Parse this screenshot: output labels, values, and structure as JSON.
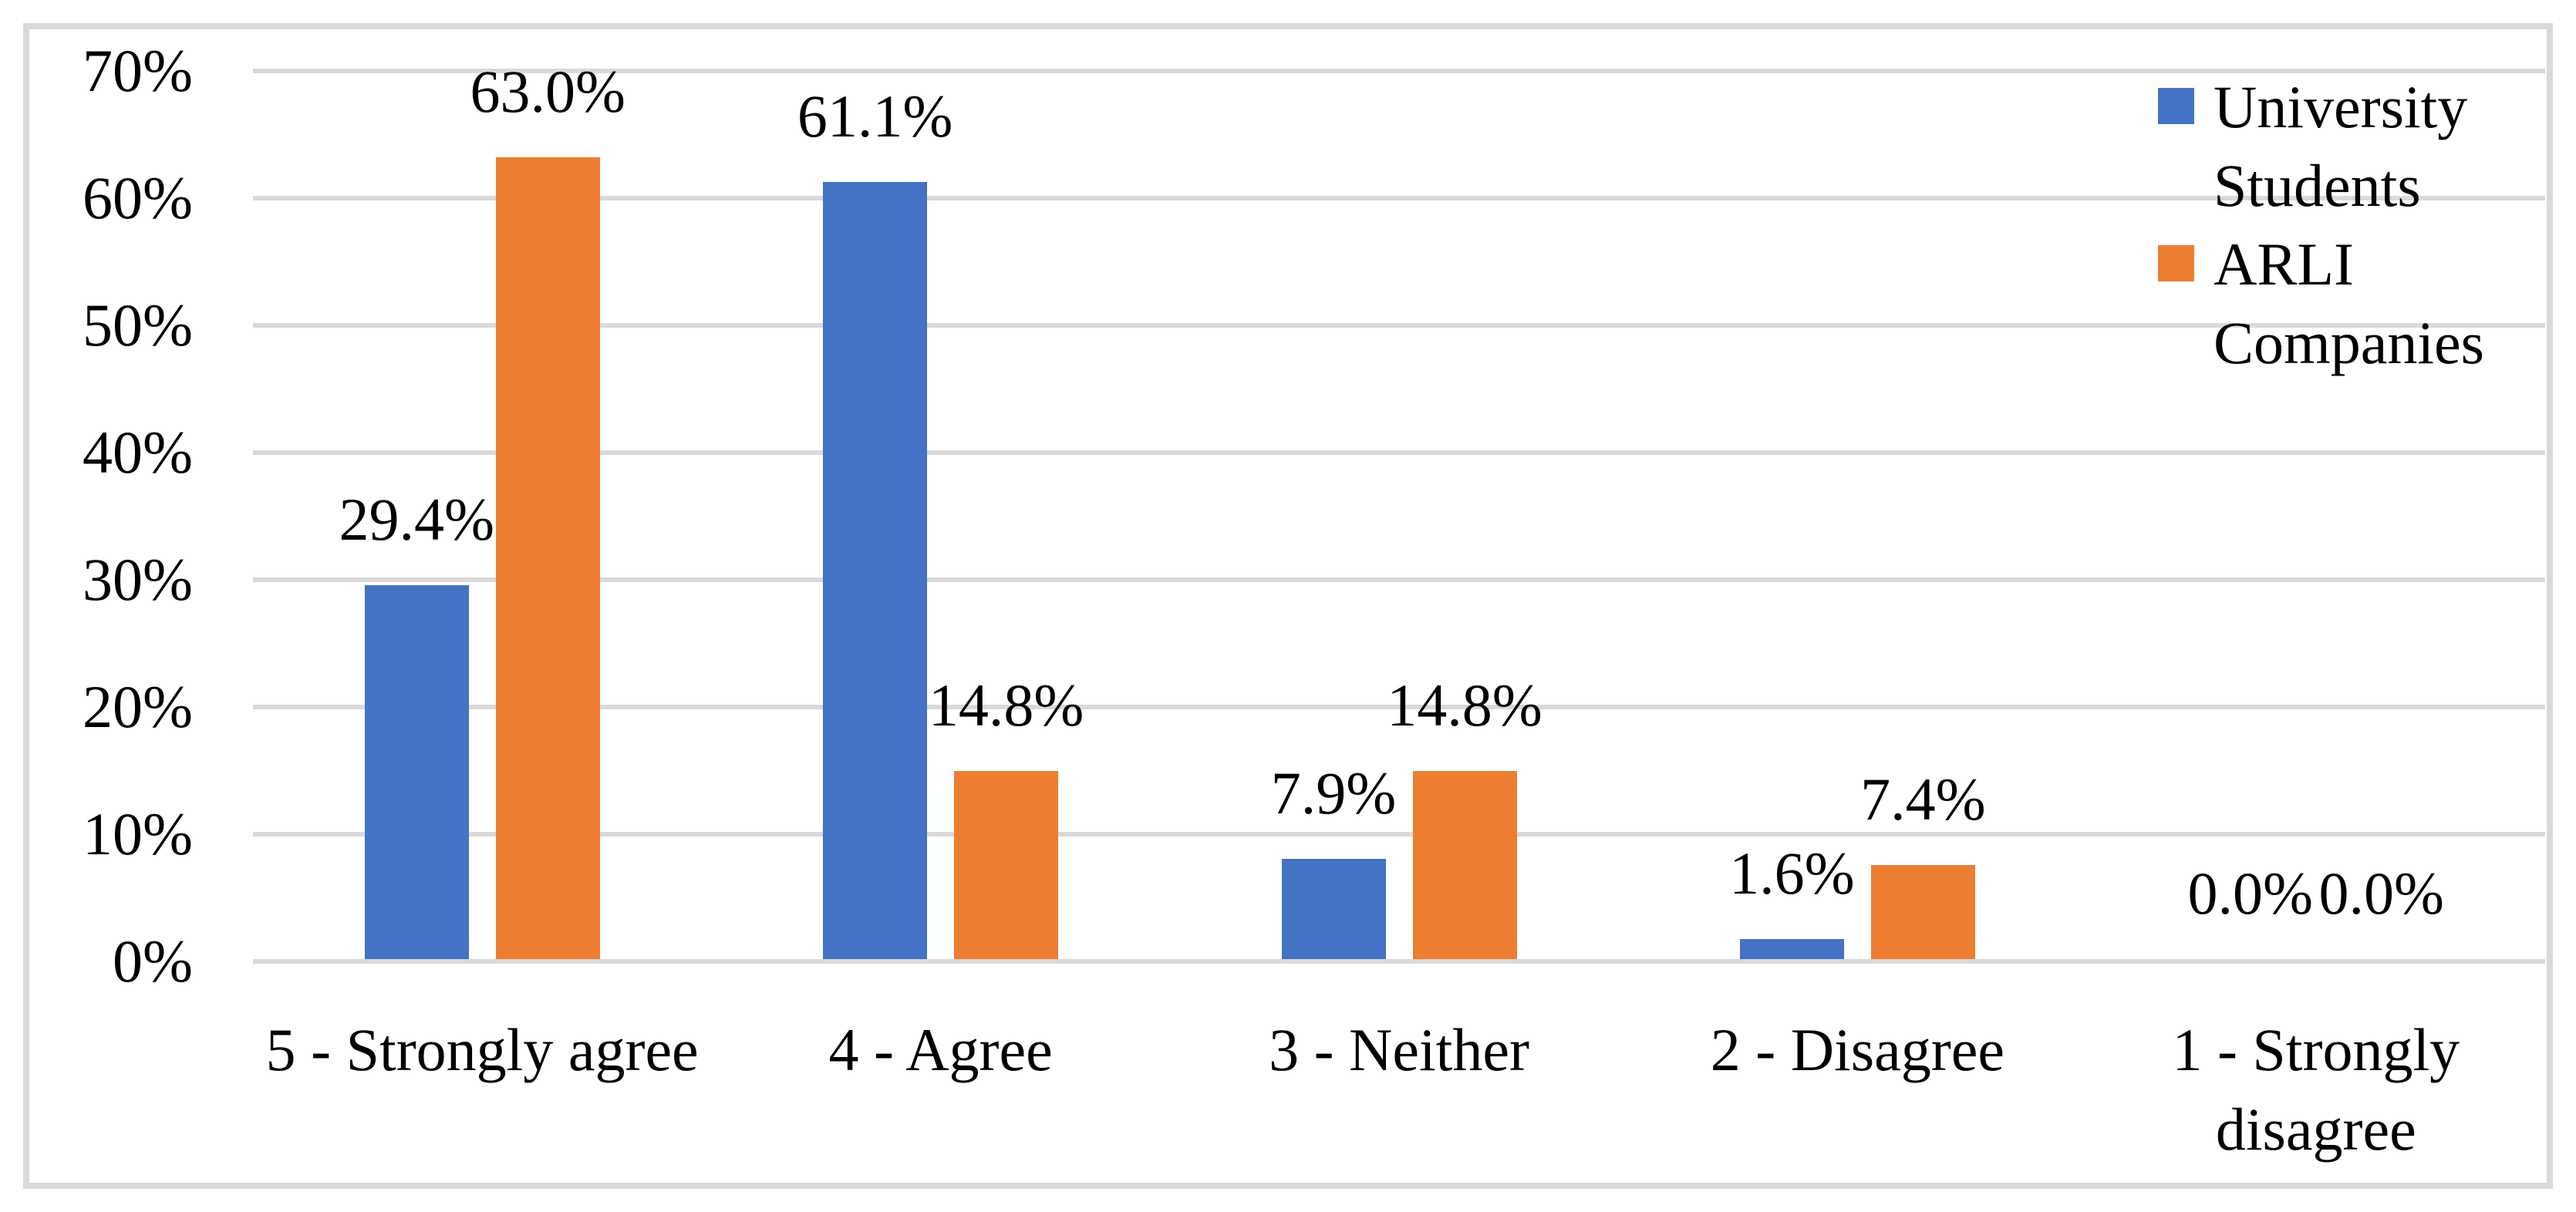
{
  "figure": {
    "background_color": "#FFFFFF",
    "border_color": "#D9D9D9",
    "gridline_color": "#D9D9D9",
    "text_color": "#000000"
  },
  "legend": {
    "position": "top-right",
    "items": [
      {
        "label": "University Students",
        "color": "#4472C4"
      },
      {
        "label": "ARLI Companies",
        "color": "#ED7D31"
      }
    ]
  },
  "chart_data": {
    "type": "bar",
    "title": "",
    "xlabel": "",
    "ylabel": "",
    "categories": [
      "5 - Strongly agree",
      "4 - Agree",
      "3 - Neither",
      "2 - Disagree",
      "1 - Strongly disagree"
    ],
    "series": [
      {
        "name": "University Students",
        "color": "#4472C4",
        "values": [
          29.4,
          61.1,
          7.9,
          1.6,
          0.0
        ],
        "labels": [
          "29.4%",
          "61.1%",
          "7.9%",
          "1.6%",
          "0.0%"
        ]
      },
      {
        "name": "ARLI Companies",
        "color": "#ED7D31",
        "values": [
          63.0,
          14.8,
          14.8,
          7.4,
          0.0
        ],
        "labels": [
          "63.0%",
          "14.8%",
          "14.8%",
          "7.4%",
          "0.0%"
        ]
      }
    ],
    "y_axis": {
      "ticks": [
        "70%",
        "60%",
        "50%",
        "40%",
        "30%",
        "20%",
        "10%",
        "0%"
      ],
      "min": 0,
      "max": 70,
      "step": 10
    },
    "grid": true,
    "legend_position": "top-right"
  }
}
